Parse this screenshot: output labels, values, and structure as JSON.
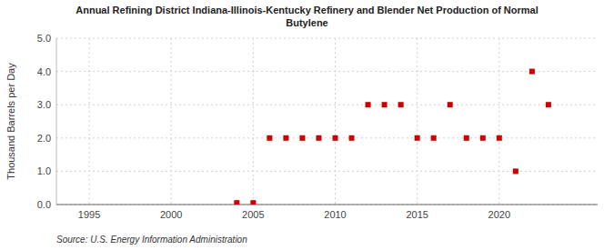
{
  "chart_data": {
    "type": "scatter",
    "title": "Annual Refining District Indiana-Illinois-Kentucky Refinery and Blender Net Production of Normal\nButylene",
    "y_label": "Thousand Barrels per Day",
    "source": "Source: U.S. Energy Information Administration",
    "x": [
      2004,
      2005,
      2006,
      2007,
      2008,
      2009,
      2010,
      2011,
      2012,
      2013,
      2014,
      2015,
      2016,
      2017,
      2018,
      2019,
      2020,
      2021,
      2022,
      2023
    ],
    "values": [
      0.05,
      0.05,
      2.0,
      2.0,
      2.0,
      2.0,
      2.0,
      2.0,
      3.0,
      3.0,
      3.0,
      2.0,
      2.0,
      3.0,
      2.0,
      2.0,
      2.0,
      1.0,
      4.0,
      3.0
    ],
    "color": "#cc0000",
    "marker": "square",
    "xlim": [
      1993,
      2026
    ],
    "ylim": [
      0.0,
      5.0
    ],
    "xticks": [
      1995,
      2000,
      2005,
      2010,
      2015,
      2020
    ],
    "yticks": [
      {
        "value": 0.0,
        "label": "0.0"
      },
      {
        "value": 1.0,
        "label": "1.0"
      },
      {
        "value": 2.0,
        "label": "2.0"
      },
      {
        "value": 3.0,
        "label": "3.0"
      },
      {
        "value": 4.0,
        "label": "4.0"
      },
      {
        "value": 5.0,
        "label": "5.0"
      }
    ],
    "grid": true
  }
}
